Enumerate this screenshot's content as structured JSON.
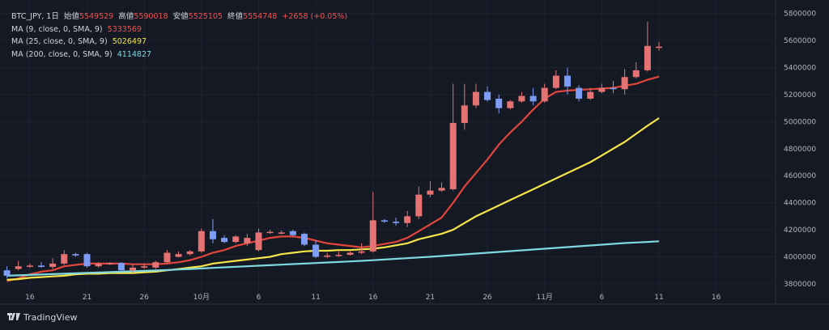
{
  "legend": {
    "symbol": "BTC_JPY, 1日",
    "open_label": "始値",
    "open": "5549529",
    "high_label": "高値",
    "high": "5590018",
    "low_label": "安値",
    "low": "5525105",
    "close_label": "終値",
    "close": "5554748",
    "change": "+2658 (+0.05%)",
    "ma": [
      {
        "label": "MA (9, close, 0, SMA, 9)",
        "value": "5333569",
        "color": "#e2453c"
      },
      {
        "label": "MA (25, close, 0, SMA, 9)",
        "value": "5026497",
        "color": "#f5e54a"
      },
      {
        "label": "MA (200, close, 0, SMA, 9)",
        "value": "4114827",
        "color": "#7fd8e0"
      }
    ]
  },
  "branding": {
    "logo_text": "TradingView"
  },
  "colors": {
    "background": "#151924",
    "up": "#e57373",
    "down": "#7f9cf5",
    "grid": "#232836"
  },
  "chart_data": {
    "type": "candlestick",
    "ylim": [
      3650000,
      5900000
    ],
    "y_ticks": [
      "5800000",
      "5600000",
      "5400000",
      "5200000",
      "5000000",
      "4800000",
      "4600000",
      "4400000",
      "4200000",
      "4000000",
      "3800000"
    ],
    "x_ticks": [
      {
        "day": 2,
        "label": "16"
      },
      {
        "day": 7,
        "label": "21"
      },
      {
        "day": 12,
        "label": "26"
      },
      {
        "day": 17,
        "label": "10月"
      },
      {
        "day": 22,
        "label": "6"
      },
      {
        "day": 27,
        "label": "11"
      },
      {
        "day": 32,
        "label": "16"
      },
      {
        "day": 37,
        "label": "21"
      },
      {
        "day": 42,
        "label": "26"
      },
      {
        "day": 47,
        "label": "11月"
      },
      {
        "day": 52,
        "label": "6"
      },
      {
        "day": 57,
        "label": "11"
      },
      {
        "day": 62,
        "label": "16"
      }
    ],
    "candles": [
      {
        "o": 3900000,
        "h": 3930000,
        "l": 3840000,
        "c": 3860000
      },
      {
        "o": 3910000,
        "h": 3970000,
        "l": 3900000,
        "c": 3930000
      },
      {
        "o": 3930000,
        "h": 3950000,
        "l": 3920000,
        "c": 3935000
      },
      {
        "o": 3935000,
        "h": 3960000,
        "l": 3920000,
        "c": 3925000
      },
      {
        "o": 3925000,
        "h": 3990000,
        "l": 3910000,
        "c": 3950000
      },
      {
        "o": 3950000,
        "h": 4050000,
        "l": 3940000,
        "c": 4020000
      },
      {
        "o": 4020000,
        "h": 4030000,
        "l": 4000000,
        "c": 4010000
      },
      {
        "o": 4020000,
        "h": 4030000,
        "l": 3920000,
        "c": 3930000
      },
      {
        "o": 3930000,
        "h": 3960000,
        "l": 3920000,
        "c": 3950000
      },
      {
        "o": 3950000,
        "h": 3960000,
        "l": 3940000,
        "c": 3955000
      },
      {
        "o": 3955000,
        "h": 3960000,
        "l": 3890000,
        "c": 3900000
      },
      {
        "o": 3900000,
        "h": 3940000,
        "l": 3880000,
        "c": 3920000
      },
      {
        "o": 3920000,
        "h": 3950000,
        "l": 3910000,
        "c": 3930000
      },
      {
        "o": 3920000,
        "h": 3970000,
        "l": 3910000,
        "c": 3960000
      },
      {
        "o": 3960000,
        "h": 4050000,
        "l": 3950000,
        "c": 4030000
      },
      {
        "o": 4000000,
        "h": 4040000,
        "l": 3995000,
        "c": 4020000
      },
      {
        "o": 4020000,
        "h": 4050000,
        "l": 4010000,
        "c": 4040000
      },
      {
        "o": 4040000,
        "h": 4210000,
        "l": 4030000,
        "c": 4190000
      },
      {
        "o": 4190000,
        "h": 4280000,
        "l": 4100000,
        "c": 4130000
      },
      {
        "o": 4140000,
        "h": 4160000,
        "l": 4100000,
        "c": 4110000
      },
      {
        "o": 4110000,
        "h": 4160000,
        "l": 4100000,
        "c": 4150000
      },
      {
        "o": 4100000,
        "h": 4170000,
        "l": 4080000,
        "c": 4140000
      },
      {
        "o": 4050000,
        "h": 4210000,
        "l": 4040000,
        "c": 4180000
      },
      {
        "o": 4180000,
        "h": 4200000,
        "l": 4170000,
        "c": 4185000
      },
      {
        "o": 4175000,
        "h": 4195000,
        "l": 4165000,
        "c": 4180000
      },
      {
        "o": 4190000,
        "h": 4200000,
        "l": 4150000,
        "c": 4160000
      },
      {
        "o": 4170000,
        "h": 4180000,
        "l": 4080000,
        "c": 4090000
      },
      {
        "o": 4090000,
        "h": 4120000,
        "l": 3990000,
        "c": 4000000
      },
      {
        "o": 4000000,
        "h": 4030000,
        "l": 3990000,
        "c": 4010000
      },
      {
        "o": 4010000,
        "h": 4040000,
        "l": 4000000,
        "c": 4015000
      },
      {
        "o": 4015000,
        "h": 4040000,
        "l": 4010000,
        "c": 4030000
      },
      {
        "o": 4030000,
        "h": 4100000,
        "l": 4020000,
        "c": 4040000
      },
      {
        "o": 4040000,
        "h": 4480000,
        "l": 4030000,
        "c": 4270000
      },
      {
        "o": 4270000,
        "h": 4280000,
        "l": 4250000,
        "c": 4260000
      },
      {
        "o": 4260000,
        "h": 4290000,
        "l": 4230000,
        "c": 4250000
      },
      {
        "o": 4250000,
        "h": 4340000,
        "l": 4220000,
        "c": 4300000
      },
      {
        "o": 4300000,
        "h": 4520000,
        "l": 4280000,
        "c": 4460000
      },
      {
        "o": 4460000,
        "h": 4560000,
        "l": 4440000,
        "c": 4490000
      },
      {
        "o": 4490000,
        "h": 4550000,
        "l": 4480000,
        "c": 4510000
      },
      {
        "o": 4500000,
        "h": 5280000,
        "l": 4490000,
        "c": 4990000
      },
      {
        "o": 4990000,
        "h": 5280000,
        "l": 4940000,
        "c": 5120000
      },
      {
        "o": 5120000,
        "h": 5280000,
        "l": 5100000,
        "c": 5220000
      },
      {
        "o": 5220000,
        "h": 5260000,
        "l": 5150000,
        "c": 5160000
      },
      {
        "o": 5170000,
        "h": 5200000,
        "l": 5060000,
        "c": 5100000
      },
      {
        "o": 5100000,
        "h": 5160000,
        "l": 5090000,
        "c": 5150000
      },
      {
        "o": 5150000,
        "h": 5220000,
        "l": 5140000,
        "c": 5190000
      },
      {
        "o": 5190000,
        "h": 5250000,
        "l": 5120000,
        "c": 5150000
      },
      {
        "o": 5150000,
        "h": 5280000,
        "l": 5140000,
        "c": 5250000
      },
      {
        "o": 5250000,
        "h": 5380000,
        "l": 5240000,
        "c": 5340000
      },
      {
        "o": 5340000,
        "h": 5400000,
        "l": 5200000,
        "c": 5260000
      },
      {
        "o": 5250000,
        "h": 5270000,
        "l": 5150000,
        "c": 5170000
      },
      {
        "o": 5170000,
        "h": 5250000,
        "l": 5160000,
        "c": 5220000
      },
      {
        "o": 5220000,
        "h": 5280000,
        "l": 5210000,
        "c": 5250000
      },
      {
        "o": 5250000,
        "h": 5300000,
        "l": 5210000,
        "c": 5240000
      },
      {
        "o": 5240000,
        "h": 5390000,
        "l": 5200000,
        "c": 5330000
      },
      {
        "o": 5330000,
        "h": 5440000,
        "l": 5320000,
        "c": 5380000
      },
      {
        "o": 5380000,
        "h": 5740000,
        "l": 5370000,
        "c": 5560000
      },
      {
        "o": 5549529,
        "h": 5590018,
        "l": 5525105,
        "c": 5554748
      }
    ],
    "ma_series": [
      {
        "name": "MA 9",
        "color": "#e2453c",
        "start": 0,
        "values": [
          3820000,
          3840000,
          3870000,
          3890000,
          3900000,
          3930000,
          3940000,
          3950000,
          3950000,
          3950000,
          3950000,
          3945000,
          3945000,
          3945000,
          3950000,
          3960000,
          3975000,
          4000000,
          4030000,
          4050000,
          4080000,
          4100000,
          4120000,
          4140000,
          4150000,
          4150000,
          4140000,
          4120000,
          4100000,
          4090000,
          4080000,
          4070000,
          4080000,
          4095000,
          4110000,
          4140000,
          4190000,
          4240000,
          4290000,
          4400000,
          4520000,
          4620000,
          4720000,
          4830000,
          4920000,
          5000000,
          5090000,
          5170000,
          5220000,
          5230000,
          5235000,
          5240000,
          5245000,
          5250000,
          5265000,
          5280000,
          5310000,
          5333569
        ]
      },
      {
        "name": "MA 25",
        "color": "#f5e54a",
        "start": 0,
        "values": [
          3830000,
          3835000,
          3845000,
          3850000,
          3855000,
          3860000,
          3870000,
          3875000,
          3875000,
          3880000,
          3880000,
          3880000,
          3885000,
          3890000,
          3900000,
          3910000,
          3920000,
          3930000,
          3950000,
          3960000,
          3970000,
          3980000,
          3990000,
          4000000,
          4020000,
          4030000,
          4040000,
          4045000,
          4045000,
          4050000,
          4050000,
          4055000,
          4060000,
          4070000,
          4085000,
          4100000,
          4130000,
          4150000,
          4170000,
          4200000,
          4250000,
          4300000,
          4340000,
          4380000,
          4420000,
          4460000,
          4500000,
          4540000,
          4580000,
          4620000,
          4660000,
          4700000,
          4750000,
          4800000,
          4850000,
          4910000,
          4970000,
          5026497
        ]
      },
      {
        "name": "MA 200",
        "color": "#7fd8e0",
        "start": 0,
        "values": [
          3860000,
          3863000,
          3866000,
          3869000,
          3872000,
          3875000,
          3878000,
          3881000,
          3884000,
          3887000,
          3890000,
          3893000,
          3896000,
          3899000,
          3902000,
          3906000,
          3910000,
          3914000,
          3918000,
          3922000,
          3926000,
          3930000,
          3934000,
          3938000,
          3942000,
          3946000,
          3950000,
          3954000,
          3958000,
          3962000,
          3966000,
          3970000,
          3975000,
          3980000,
          3985000,
          3990000,
          3995000,
          4000000,
          4006000,
          4012000,
          4018000,
          4024000,
          4030000,
          4036000,
          4042000,
          4048000,
          4054000,
          4060000,
          4066000,
          4072000,
          4078000,
          4084000,
          4090000,
          4096000,
          4102000,
          4106000,
          4110000,
          4114827
        ]
      }
    ]
  }
}
